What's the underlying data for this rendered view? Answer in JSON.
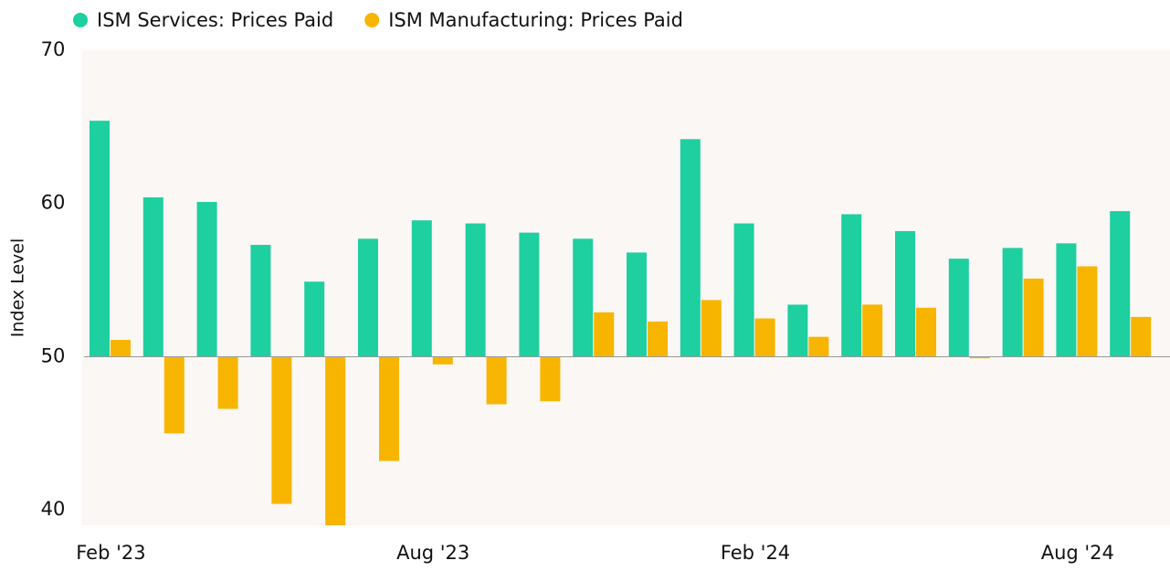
{
  "chart_data": {
    "type": "bar",
    "y_axis_label": "Index Level",
    "categories": [
      "Feb '23",
      null,
      null,
      null,
      null,
      null,
      "Aug '23",
      null,
      null,
      null,
      null,
      null,
      "Feb '24",
      null,
      null,
      null,
      null,
      null,
      "Aug '24",
      null
    ],
    "series": [
      {
        "name": "ISM Services: Prices Paid",
        "color": "#1ecf9f",
        "values": [
          65.4,
          60.4,
          60.1,
          57.3,
          54.9,
          57.7,
          58.9,
          58.7,
          58.1,
          57.7,
          56.8,
          64.2,
          58.7,
          53.4,
          59.3,
          58.2,
          56.4,
          57.1,
          57.4,
          59.5
        ]
      },
      {
        "name": "ISM Manufacturing: Prices Paid",
        "color": "#f7b500",
        "values": [
          51.1,
          45.0,
          46.6,
          40.4,
          39.0,
          43.2,
          49.5,
          46.9,
          47.1,
          52.9,
          52.3,
          53.7,
          52.5,
          51.3,
          53.4,
          53.2,
          49.9,
          55.1,
          55.9,
          52.6
        ]
      }
    ],
    "bar_base": 50,
    "ylim": [
      39,
      70
    ],
    "yticks": [
      40,
      50,
      60,
      70
    ],
    "grid": false,
    "legend": "top-left"
  }
}
